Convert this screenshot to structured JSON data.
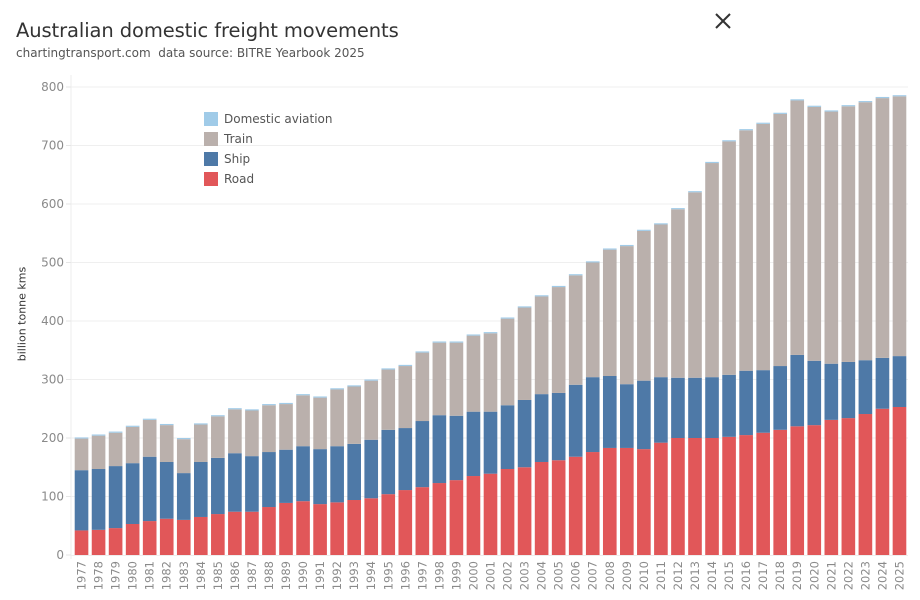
{
  "header": {
    "title": "Australian domestic freight movements",
    "subtitle": "chartingtransport.com  data source: BITRE Yearbook 2025"
  },
  "window": {
    "close_icon": "close-icon"
  },
  "colors": {
    "Domestic aviation": "#a0cbe8",
    "Train": "#bab0ac",
    "Ship": "#4e79a7",
    "Road": "#e15759",
    "gridline": "#efefef",
    "axis_text": "#8a8a8a"
  },
  "chart_data": {
    "type": "bar",
    "stacked": true,
    "title": "Australian domestic freight movements",
    "subtitle": "chartingtransport.com  data source: BITRE Yearbook 2025",
    "xlabel": "",
    "ylabel": "billion tonne kms",
    "ylim": [
      0,
      800
    ],
    "yticks": [
      0,
      100,
      200,
      300,
      400,
      500,
      600,
      700,
      800
    ],
    "grid": true,
    "legend_position": "top-left",
    "legend": [
      "Domestic aviation",
      "Train",
      "Ship",
      "Road"
    ],
    "categories": [
      "1977",
      "1978",
      "1979",
      "1980",
      "1981",
      "1982",
      "1983",
      "1984",
      "1985",
      "1986",
      "1987",
      "1988",
      "1989",
      "1990",
      "1991",
      "1992",
      "1993",
      "1994",
      "1995",
      "1996",
      "1997",
      "1998",
      "1999",
      "2000",
      "2001",
      "2002",
      "2003",
      "2004",
      "2005",
      "2006",
      "2007",
      "2008",
      "2009",
      "2010",
      "2011",
      "2012",
      "2013",
      "2014",
      "2015",
      "2016",
      "2017",
      "2018",
      "2019",
      "2020",
      "2021",
      "2022",
      "2023",
      "2024",
      "2025"
    ],
    "series": [
      {
        "name": "Road",
        "values": [
          42,
          43,
          46,
          53,
          58,
          62,
          60,
          65,
          70,
          74,
          74,
          82,
          89,
          92,
          87,
          90,
          94,
          97,
          104,
          111,
          116,
          123,
          128,
          135,
          139,
          147,
          150,
          159,
          162,
          168,
          176,
          183,
          183,
          181,
          192,
          200,
          200,
          200,
          202,
          205,
          209,
          214,
          220,
          222,
          231,
          234,
          241,
          250,
          253
        ]
      },
      {
        "name": "Ship",
        "values": [
          103,
          104,
          106,
          104,
          110,
          97,
          80,
          94,
          96,
          100,
          95,
          94,
          91,
          94,
          94,
          96,
          96,
          100,
          110,
          106,
          113,
          116,
          110,
          110,
          106,
          109,
          115,
          116,
          115,
          123,
          128,
          123,
          109,
          117,
          112,
          103,
          103,
          104,
          106,
          110,
          107,
          109,
          122,
          110,
          96,
          96,
          92,
          87,
          87
        ]
      },
      {
        "name": "Train",
        "values": [
          54,
          57,
          57,
          62,
          63,
          63,
          58,
          64,
          71,
          75,
          78,
          80,
          78,
          87,
          88,
          97,
          98,
          101,
          103,
          106,
          117,
          124,
          125,
          130,
          134,
          148,
          158,
          167,
          181,
          187,
          196,
          216,
          236,
          256,
          261,
          288,
          317,
          366,
          399,
          411,
          421,
          431,
          435,
          434,
          431,
          437,
          441,
          444,
          444
        ]
      },
      {
        "name": "Domestic aviation",
        "values": [
          2,
          2,
          2,
          2,
          2,
          2,
          2,
          2,
          2,
          2,
          2,
          2,
          2,
          2,
          2,
          2,
          2,
          2,
          2,
          2,
          2,
          2,
          2,
          2,
          2,
          2,
          2,
          2,
          2,
          2,
          2,
          2,
          2,
          2,
          2,
          2,
          2,
          2,
          2,
          2,
          2,
          2,
          2,
          2,
          2,
          2,
          2,
          2,
          2
        ]
      }
    ]
  }
}
